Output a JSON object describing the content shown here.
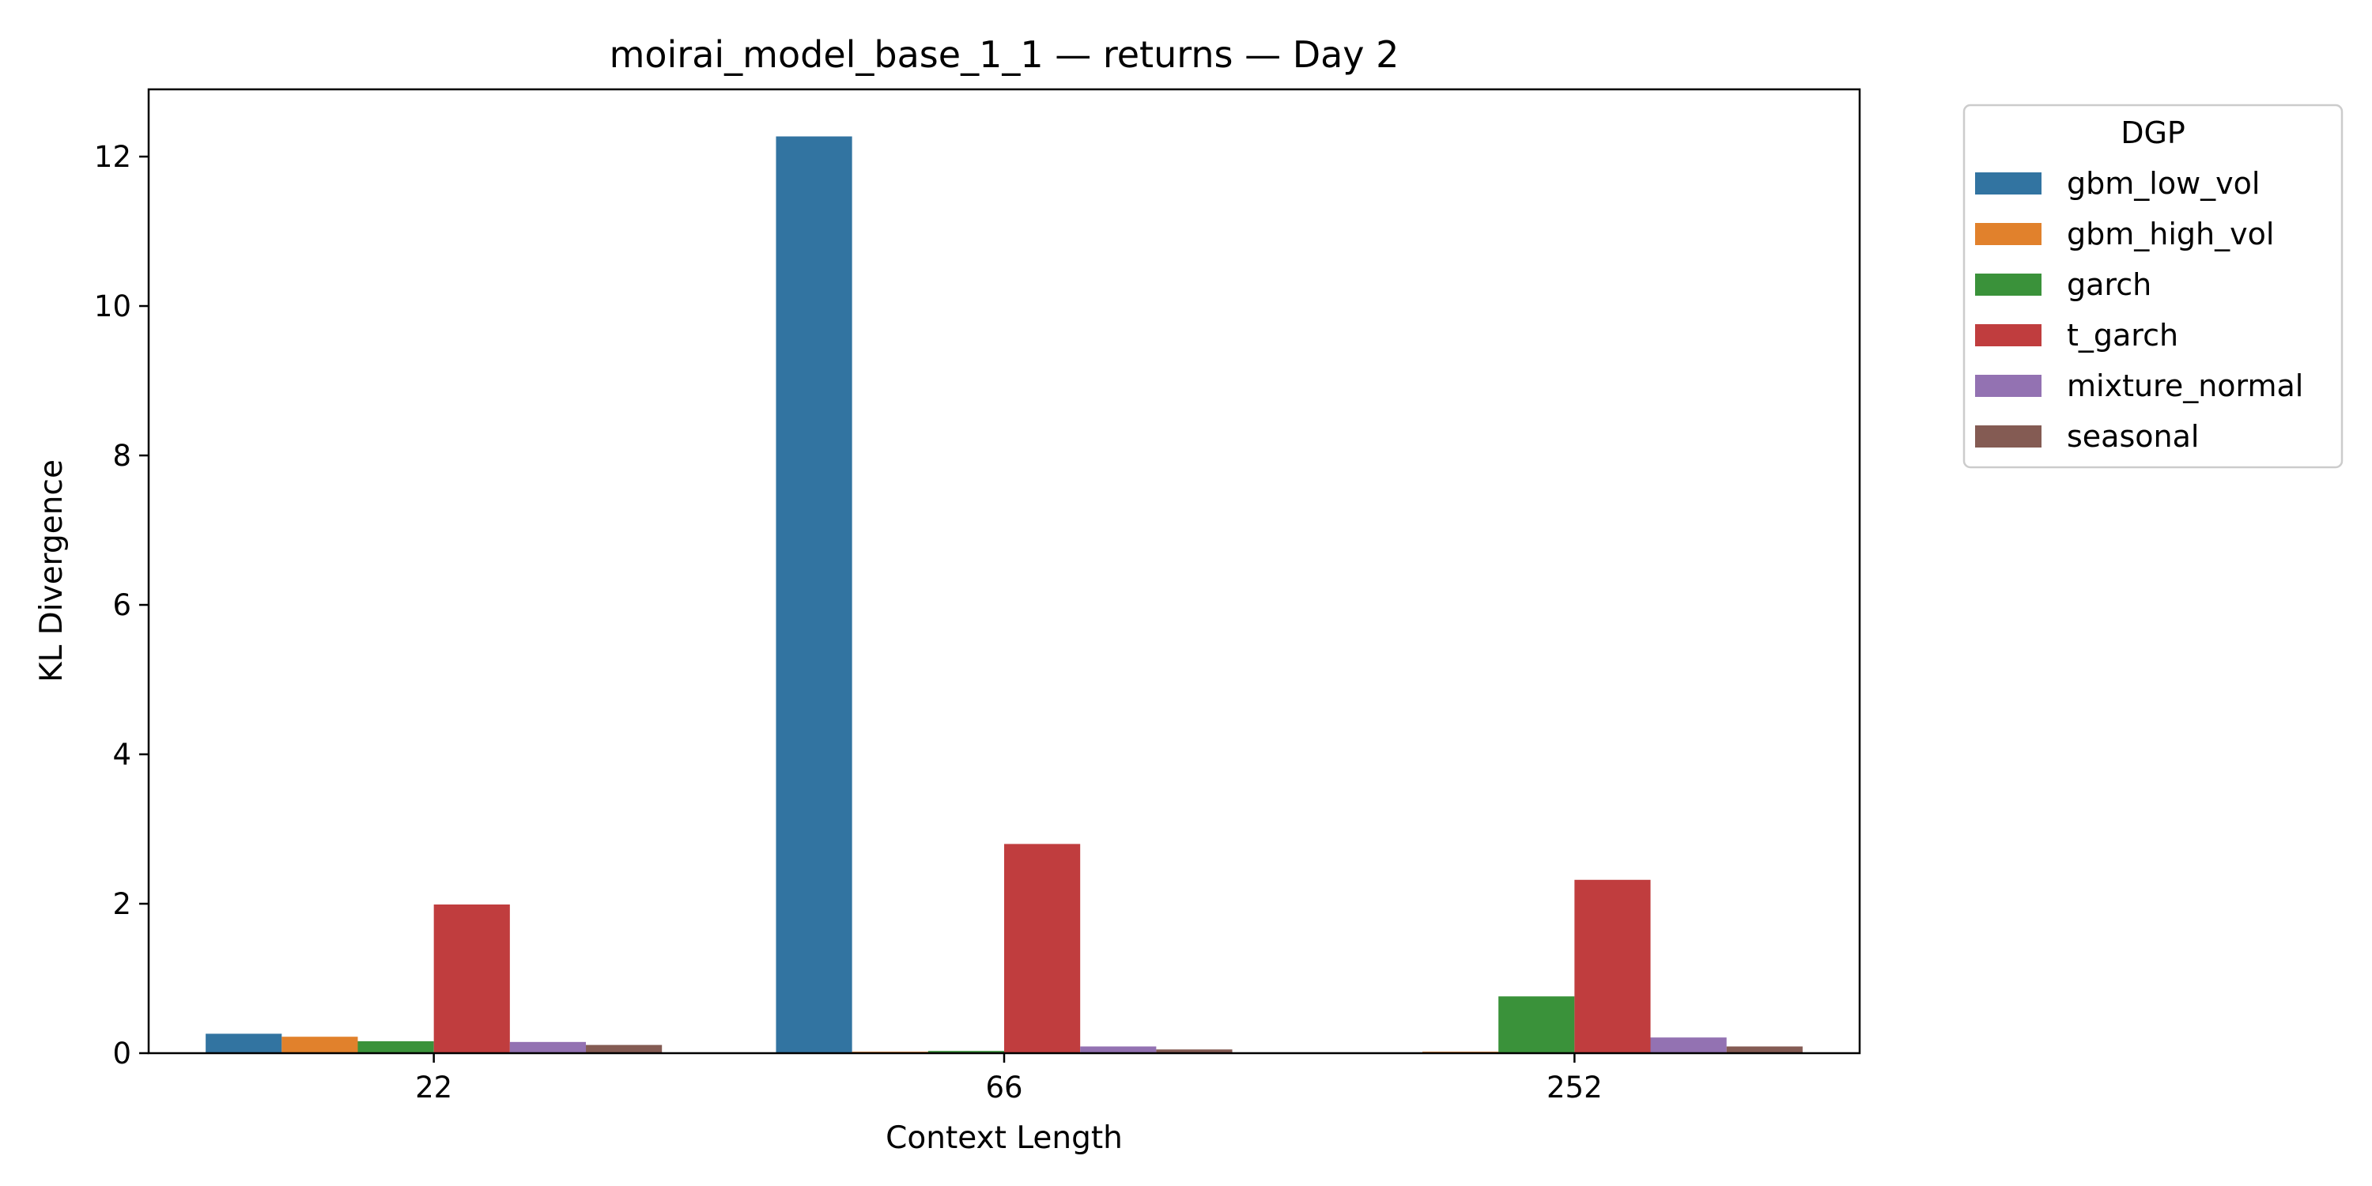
{
  "chart_data": {
    "type": "bar",
    "title": "moirai_model_base_1_1 — returns — Day 2",
    "xlabel": "Context Length",
    "ylabel": "KL Divergence",
    "categories": [
      "22",
      "66",
      "252"
    ],
    "ylim": [
      0,
      12.9
    ],
    "yticks": [
      0,
      2,
      4,
      6,
      8,
      10,
      12
    ],
    "grid": false,
    "legend": {
      "title": "DGP",
      "placement": "outside-upper-right"
    },
    "series": [
      {
        "name": "gbm_low_vol",
        "color": "#3274a1",
        "values": [
          0.26,
          12.27,
          0.01
        ]
      },
      {
        "name": "gbm_high_vol",
        "color": "#e1812c",
        "values": [
          0.22,
          0.02,
          0.02
        ]
      },
      {
        "name": "garch",
        "color": "#3a923a",
        "values": [
          0.16,
          0.03,
          0.76
        ]
      },
      {
        "name": "t_garch",
        "color": "#c03d3e",
        "values": [
          1.99,
          2.8,
          2.32
        ]
      },
      {
        "name": "mixture_normal",
        "color": "#9372b2",
        "values": [
          0.15,
          0.09,
          0.21
        ]
      },
      {
        "name": "seasonal",
        "color": "#845b53",
        "values": [
          0.11,
          0.05,
          0.09
        ]
      }
    ]
  }
}
